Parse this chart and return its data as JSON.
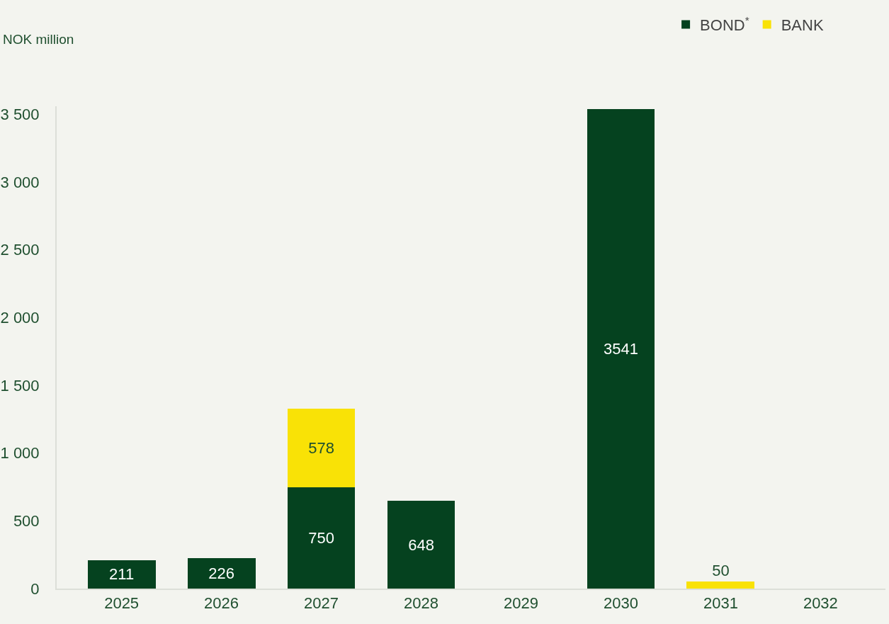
{
  "chart_data": {
    "type": "bar",
    "stacked": true,
    "ylabel": "NOK million",
    "categories": [
      "2025",
      "2026",
      "2027",
      "2028",
      "2029",
      "2030",
      "2031",
      "2032"
    ],
    "series": [
      {
        "name": "BOND$^{*}$",
        "color": "#05421f",
        "values": [
          211,
          226,
          750,
          648,
          null,
          3541,
          null,
          null
        ]
      },
      {
        "name": "BANK",
        "color": "#f9e206",
        "values": [
          null,
          null,
          578,
          null,
          null,
          null,
          50,
          null
        ]
      }
    ],
    "ylim": [
      0,
      3560
    ],
    "yticks": [
      0,
      500,
      {
        "value": 1000,
        "label": "1 000"
      },
      {
        "value": 1500,
        "label": "1 500"
      },
      {
        "value": 2000,
        "label": "2 000"
      },
      {
        "value": 2500,
        "label": "2 500"
      },
      {
        "value": 3000,
        "label": "3 000"
      },
      {
        "value": 3500,
        "label": "3 500"
      }
    ],
    "data_labels": true,
    "grid": false,
    "legend": "top right"
  }
}
